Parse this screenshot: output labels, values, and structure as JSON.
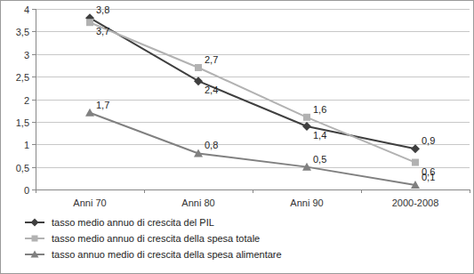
{
  "chart_data": {
    "type": "line",
    "categories": [
      "Anni 70",
      "Anni 80",
      "Anni 90",
      "2000-2008"
    ],
    "series": [
      {
        "name": "tasso medio annuo di crescita del PIL",
        "color": "#3f3f3f",
        "marker": "diamond",
        "values": [
          3.8,
          2.4,
          1.4,
          0.9
        ],
        "value_labels": [
          "3,8",
          "2,4",
          "1,4",
          "0,9"
        ]
      },
      {
        "name": "tasso medio annuo di crescita della spesa totale",
        "color": "#b2b2b2",
        "marker": "square",
        "values": [
          3.7,
          2.7,
          1.6,
          0.6
        ],
        "value_labels": [
          "3,7",
          "2,7",
          "1,6",
          "0,6"
        ]
      },
      {
        "name": "tasso annuo medio di crescita della spesa alimentare",
        "color": "#808080",
        "marker": "triangle",
        "values": [
          1.7,
          0.8,
          0.5,
          0.1
        ],
        "value_labels": [
          "1,7",
          "0,8",
          "0,5",
          "0,1"
        ]
      }
    ],
    "ylim": [
      0,
      4
    ],
    "yticks": [
      0,
      {
        "value": 0.5,
        "label": "0,5"
      },
      1,
      {
        "value": 1.5,
        "label": "1,5"
      },
      2,
      {
        "value": 2.5,
        "label": "2,5"
      },
      3,
      {
        "value": 3.5,
        "label": "3,5"
      },
      4
    ],
    "grid": true,
    "data_labels": true,
    "legend": "bottom-left"
  }
}
